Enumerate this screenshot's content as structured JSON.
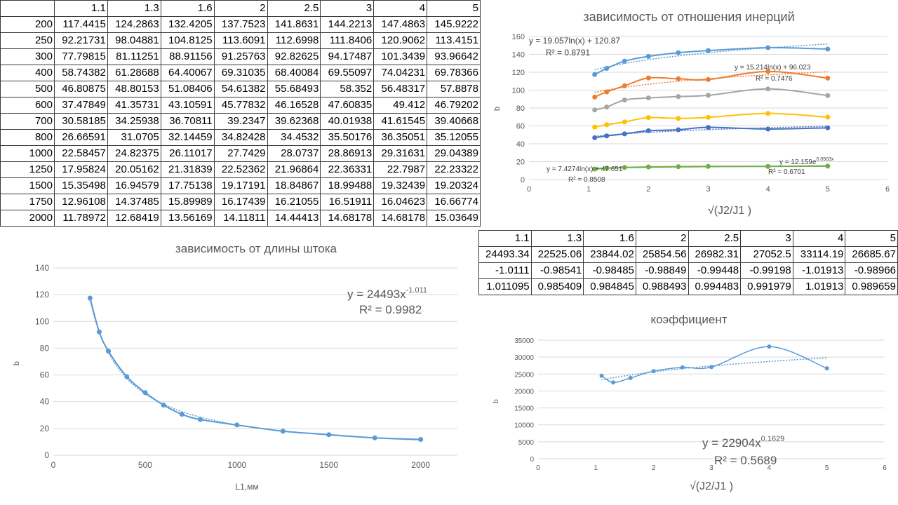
{
  "table_main": {
    "header": [
      "",
      "1.1",
      "1.3",
      "1.6",
      "2",
      "2.5",
      "3",
      "4",
      "5"
    ],
    "rows": [
      [
        "200",
        "117.4415",
        "124.2863",
        "132.4205",
        "137.7523",
        "141.8631",
        "144.2213",
        "147.4863",
        "145.9222"
      ],
      [
        "250",
        "92.21731",
        "98.04881",
        "104.8125",
        "113.6091",
        "112.6998",
        "111.8406",
        "120.9062",
        "113.4151"
      ],
      [
        "300",
        "77.79815",
        "81.11251",
        "88.91156",
        "91.25763",
        "92.82625",
        "94.17487",
        "101.3439",
        "93.96642"
      ],
      [
        "400",
        "58.74382",
        "61.28688",
        "64.40067",
        "69.31035",
        "68.40084",
        "69.55097",
        "74.04231",
        "69.78366"
      ],
      [
        "500",
        "46.80875",
        "48.80153",
        "51.08406",
        "54.61382",
        "55.68493",
        "58.352",
        "56.48317",
        "57.8878"
      ],
      [
        "600",
        "37.47849",
        "41.35731",
        "43.10591",
        "45.77832",
        "46.16528",
        "47.60835",
        "49.412",
        "46.79202"
      ],
      [
        "700",
        "30.58185",
        "34.25938",
        "36.70811",
        "39.2347",
        "39.62368",
        "40.01938",
        "41.61545",
        "39.40668"
      ],
      [
        "800",
        "26.66591",
        "31.0705",
        "32.14459",
        "34.82428",
        "34.4532",
        "35.50176",
        "36.35051",
        "35.12055"
      ],
      [
        "1000",
        "22.58457",
        "24.82375",
        "26.11017",
        "27.7429",
        "28.0737",
        "28.86913",
        "29.31631",
        "29.04389"
      ],
      [
        "1250",
        "17.95824",
        "20.05162",
        "21.31839",
        "22.52362",
        "21.96864",
        "22.36331",
        "22.7987",
        "22.23322"
      ],
      [
        "1500",
        "15.35498",
        "16.94579",
        "17.75138",
        "19.17191",
        "18.84867",
        "18.99488",
        "19.32439",
        "19.20324"
      ],
      [
        "1750",
        "12.96108",
        "14.37485",
        "15.89989",
        "16.17439",
        "16.21055",
        "16.51911",
        "16.04623",
        "16.66774"
      ],
      [
        "2000",
        "11.78972",
        "12.68419",
        "13.56169",
        "14.11811",
        "14.44413",
        "14.68178",
        "14.68178",
        "15.03649"
      ]
    ]
  },
  "table_coef": {
    "header": [
      "1.1",
      "1.3",
      "1.6",
      "2",
      "2.5",
      "3",
      "4",
      "5"
    ],
    "rows": [
      [
        "24493.34",
        "22525.06",
        "23844.02",
        "25854.56",
        "26982.31",
        "27052.5",
        "33114.19",
        "26685.67"
      ],
      [
        "-1.0111",
        "-0.98541",
        "-0.98485",
        "-0.98849",
        "-0.99448",
        "-0.99198",
        "-1.01913",
        "-0.98966"
      ],
      [
        "1.011095",
        "0.985409",
        "0.984845",
        "0.988493",
        "0.994483",
        "0.991979",
        "1.01913",
        "0.989659"
      ]
    ]
  },
  "chart_data": [
    {
      "id": "inertia",
      "type": "scatter",
      "title": "зависимость от отношения инерций",
      "xlabel": "√(J2/J1 )",
      "ylabel": "b",
      "xlim": [
        0,
        6
      ],
      "ylim": [
        0,
        160
      ],
      "xticks": [
        "0",
        "1",
        "2",
        "3",
        "4",
        "5",
        "6"
      ],
      "yticks": [
        "0",
        "20",
        "40",
        "60",
        "80",
        "100",
        "120",
        "140",
        "160"
      ],
      "grid": true,
      "x": [
        1.1,
        1.3,
        1.6,
        2,
        2.5,
        3,
        4,
        5
      ],
      "series": [
        {
          "color": "#5b9bd5",
          "values": [
            117.44,
            124.29,
            132.42,
            137.75,
            141.86,
            144.22,
            147.49,
            145.92
          ],
          "trend": "log",
          "trend_a": 19.057,
          "trend_b": 120.87
        },
        {
          "color": "#ed7d31",
          "values": [
            92.22,
            98.05,
            104.81,
            113.61,
            112.7,
            111.84,
            120.91,
            113.42
          ],
          "trend": "log",
          "trend_a": 15.214,
          "trend_b": 96.023
        },
        {
          "color": "#a5a5a5",
          "values": [
            77.8,
            81.11,
            88.91,
            91.26,
            92.83,
            94.17,
            101.34,
            93.97
          ]
        },
        {
          "color": "#ffc000",
          "values": [
            58.74,
            61.29,
            64.4,
            69.31,
            68.4,
            69.55,
            74.04,
            69.78
          ]
        },
        {
          "color": "#4472c4",
          "values": [
            46.81,
            48.8,
            51.08,
            54.61,
            55.68,
            58.35,
            56.48,
            57.89
          ],
          "trend": "log",
          "trend_a": 7.4274,
          "trend_b": 47.651
        },
        {
          "color": "#70ad47",
          "values": [
            11.79,
            12.68,
            13.56,
            14.12,
            14.44,
            14.68,
            14.68,
            15.04
          ],
          "trend": "exp",
          "trend_a": 12.159,
          "trend_b": 0.0503
        }
      ],
      "annotations": {
        "eq1": "y = 19.057ln(x) + 120.87",
        "r1": "R² = 0.8791",
        "eq2": "y = 15.214ln(x) + 96.023",
        "r2": "R² = 0.7476",
        "eq3": "y = 7.4274ln(x) + 47.651",
        "r3": "R² = 0.8508",
        "eq4_base": "y = 12.159e",
        "eq4_exp": "0.0503x",
        "r4": "R² = 0.6701"
      }
    },
    {
      "id": "length",
      "type": "scatter",
      "title": "зависимость от длины штока",
      "xlabel": "L1,мм",
      "ylabel": "b",
      "xlim": [
        0,
        2200
      ],
      "ylim": [
        0,
        140
      ],
      "xticks": [
        "0",
        "500",
        "1000",
        "1500",
        "2000"
      ],
      "xtick_values": [
        0,
        500,
        1000,
        1500,
        2000
      ],
      "yticks": [
        "0",
        "20",
        "40",
        "60",
        "80",
        "100",
        "120",
        "140"
      ],
      "grid": true,
      "x": [
        200,
        250,
        300,
        400,
        500,
        600,
        700,
        800,
        1000,
        1250,
        1500,
        1750,
        2000
      ],
      "series": [
        {
          "color": "#5b9bd5",
          "values": [
            117.44,
            92.22,
            77.8,
            58.74,
            46.81,
            37.48,
            30.58,
            26.67,
            22.58,
            17.96,
            15.35,
            12.96,
            11.79
          ],
          "trend": "power",
          "trend_a": 24493,
          "trend_b": -1.011
        }
      ],
      "annotations": {
        "eq_base": "y = 24493x",
        "eq_exp": "-1.011",
        "r2": "R² = 0.9982"
      }
    },
    {
      "id": "coef",
      "type": "scatter",
      "title": "коэффициент",
      "xlabel": "√(J2/J1 )",
      "ylabel": "b",
      "xlim": [
        0,
        6
      ],
      "ylim": [
        0,
        35000
      ],
      "xticks": [
        "0",
        "1",
        "2",
        "3",
        "4",
        "5",
        "6"
      ],
      "yticks": [
        "0",
        "5000",
        "10000",
        "15000",
        "20000",
        "25000",
        "30000",
        "35000"
      ],
      "grid": true,
      "x": [
        1.1,
        1.3,
        1.6,
        2,
        2.5,
        3,
        4,
        5
      ],
      "series": [
        {
          "color": "#5b9bd5",
          "values": [
            24493.34,
            22525.06,
            23844.02,
            25854.56,
            26982.31,
            27052.5,
            33114.19,
            26685.67
          ],
          "trend": "power",
          "trend_a": 22904,
          "trend_b": 0.1629
        }
      ],
      "annotations": {
        "eq_base": "y = 22904x",
        "eq_exp": "0.1629",
        "r2": "R² = 0.5689"
      }
    }
  ]
}
